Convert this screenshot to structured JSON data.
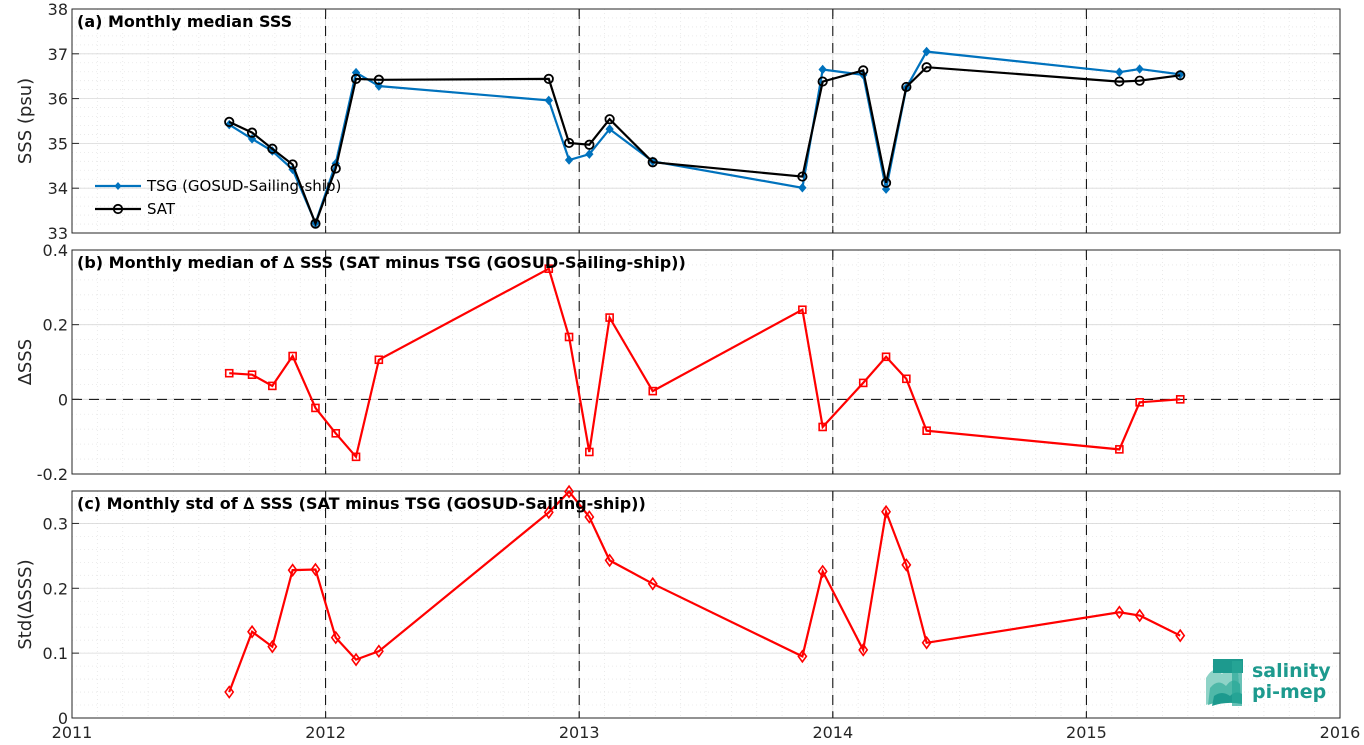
{
  "chart_data": [
    {
      "type": "line",
      "title": "(a) Monthly median SSS",
      "xlabel": "",
      "ylabel": "SSS (psu)",
      "xlim": [
        2011,
        2016
      ],
      "ylim": [
        33,
        38
      ],
      "yticks": [
        33,
        34,
        35,
        36,
        37,
        38
      ],
      "grid": true,
      "legend_position": "lower-left",
      "series": [
        {
          "name": "TSG (GOSUD-Sailing-ship)",
          "color": "#0072bd",
          "marker": "filled-diamond",
          "x": [
            2011.62,
            2011.71,
            2011.79,
            2011.87,
            2011.96,
            2012.04,
            2012.12,
            2012.21,
            2012.88,
            2012.96,
            2013.04,
            2013.12,
            2013.29,
            2013.88,
            2013.96,
            2014.12,
            2014.21,
            2014.29,
            2014.37,
            2015.13,
            2015.21,
            2015.37
          ],
          "y": [
            35.42,
            35.1,
            34.83,
            34.42,
            33.22,
            34.55,
            36.58,
            36.28,
            35.96,
            34.63,
            34.76,
            35.32,
            34.6,
            34.01,
            36.65,
            36.53,
            33.98,
            36.24,
            37.05,
            36.59,
            36.66,
            36.54
          ]
        },
        {
          "name": "SAT",
          "color": "#000000",
          "marker": "open-circle",
          "x": [
            2011.62,
            2011.71,
            2011.79,
            2011.87,
            2011.96,
            2012.04,
            2012.12,
            2012.21,
            2012.88,
            2012.96,
            2013.04,
            2013.12,
            2013.29,
            2013.88,
            2013.96,
            2014.12,
            2014.21,
            2014.29,
            2014.37,
            2015.13,
            2015.21,
            2015.37
          ],
          "y": [
            35.48,
            35.24,
            34.88,
            34.53,
            33.21,
            34.44,
            36.44,
            36.42,
            36.44,
            35.01,
            34.97,
            35.54,
            34.58,
            34.26,
            36.38,
            36.63,
            34.12,
            36.26,
            36.7,
            36.38,
            36.4,
            36.52
          ]
        }
      ]
    },
    {
      "type": "line",
      "title": "(b) Monthly median of ∆ SSS (SAT minus TSG (GOSUD-Sailing-ship))",
      "xlabel": "",
      "ylabel": "∆SSS",
      "xlim": [
        2011,
        2016
      ],
      "ylim": [
        -0.2,
        0.4
      ],
      "yticks": [
        -0.2,
        0,
        0.2,
        0.4
      ],
      "ytick_labels": [
        "-0.2",
        "0",
        "0.2",
        "0.4"
      ],
      "grid": true,
      "zero_line": true,
      "series": [
        {
          "color": "#ff0000",
          "marker": "open-square",
          "x": [
            2011.62,
            2011.71,
            2011.79,
            2011.87,
            2011.96,
            2012.04,
            2012.12,
            2012.21,
            2012.88,
            2012.96,
            2013.04,
            2013.12,
            2013.29,
            2013.88,
            2013.96,
            2014.12,
            2014.21,
            2014.29,
            2014.37,
            2015.13,
            2015.21,
            2015.37
          ],
          "y": [
            0.07,
            0.066,
            0.036,
            0.116,
            -0.023,
            -0.091,
            -0.154,
            0.106,
            0.35,
            0.167,
            -0.141,
            0.219,
            0.022,
            0.24,
            -0.074,
            0.044,
            0.114,
            0.055,
            -0.084,
            -0.134,
            -0.008,
            0.0
          ]
        }
      ]
    },
    {
      "type": "line",
      "title": "(c) Monthly std of ∆ SSS (SAT minus TSG (GOSUD-Sailing-ship))",
      "xlabel": "",
      "ylabel": "Std(∆SSS)",
      "xlim": [
        2011,
        2016
      ],
      "ylim": [
        0,
        0.35
      ],
      "yticks": [
        0,
        0.1,
        0.2,
        0.3
      ],
      "ytick_labels": [
        "0",
        "0.1",
        "0.2",
        "0.3"
      ],
      "xticks": [
        2011,
        2012,
        2013,
        2014,
        2015,
        2016
      ],
      "xtick_labels": [
        "2011",
        "2012",
        "2013",
        "2014",
        "2015",
        "2016"
      ],
      "grid": true,
      "series": [
        {
          "color": "#ff0000",
          "marker": "open-diamond",
          "x": [
            2011.62,
            2011.71,
            2011.79,
            2011.87,
            2011.96,
            2012.04,
            2012.12,
            2012.21,
            2012.88,
            2012.96,
            2013.04,
            2013.12,
            2013.29,
            2013.88,
            2013.96,
            2014.12,
            2014.21,
            2014.29,
            2014.37,
            2015.13,
            2015.21,
            2015.37
          ],
          "y": [
            0.04,
            0.133,
            0.11,
            0.228,
            0.229,
            0.124,
            0.09,
            0.103,
            0.317,
            0.349,
            0.31,
            0.243,
            0.207,
            0.095,
            0.226,
            0.105,
            0.318,
            0.236,
            0.116,
            0.163,
            0.158,
            0.127
          ]
        }
      ]
    }
  ],
  "year_lines": [
    2012,
    2013,
    2014,
    2015
  ],
  "logo": {
    "line1": "salinity",
    "line2": "pi-mep",
    "color": "#1d9a8e"
  }
}
